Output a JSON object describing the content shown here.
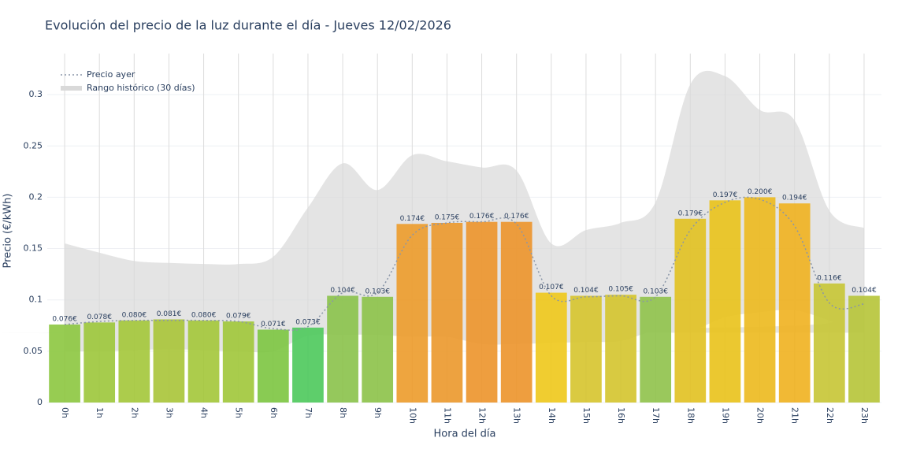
{
  "chart_data": {
    "type": "bar",
    "title": "Evolución del precio de la luz durante el día - Jueves 12/02/2026",
    "x_label": "Hora del día",
    "y_label": "Precio (€/kWh)",
    "categories": [
      "0h",
      "1h",
      "2h",
      "3h",
      "4h",
      "5h",
      "6h",
      "7h",
      "8h",
      "9h",
      "10h",
      "11h",
      "12h",
      "13h",
      "14h",
      "15h",
      "16h",
      "17h",
      "18h",
      "19h",
      "20h",
      "21h",
      "22h",
      "23h"
    ],
    "values": [
      0.076,
      0.078,
      0.08,
      0.081,
      0.08,
      0.079,
      0.071,
      0.073,
      0.104,
      0.103,
      0.174,
      0.175,
      0.176,
      0.176,
      0.107,
      0.104,
      0.105,
      0.103,
      0.179,
      0.197,
      0.2,
      0.194,
      0.116,
      0.104
    ],
    "value_labels": [
      "0.076€",
      "0.078€",
      "0.080€",
      "0.081€",
      "0.080€",
      "0.079€",
      "0.071€",
      "0.073€",
      "0.104€",
      "0.103€",
      "0.174€",
      "0.175€",
      "0.176€",
      "0.176€",
      "0.107€",
      "0.104€",
      "0.105€",
      "0.103€",
      "0.179€",
      "0.197€",
      "0.200€",
      "0.194€",
      "0.116€",
      "0.104€"
    ],
    "colors": [
      "#8cc63f",
      "#9cc63a",
      "#a3c738",
      "#a8c437",
      "#a3c738",
      "#a0c639",
      "#7cc540",
      "#4cc95b",
      "#8ac24a",
      "#8cc248",
      "#ec9b2a",
      "#eb982b",
      "#ec942a",
      "#ec942a",
      "#eec81a",
      "#d6c42c",
      "#d4c42c",
      "#8fc24a",
      "#e1c120",
      "#e9c21a",
      "#ecb91d",
      "#efb11f",
      "#c6c534",
      "#b6c437"
    ],
    "line": {
      "name": "Precio ayer",
      "color": "#8a96a8",
      "values": [
        0.076,
        0.079,
        0.08,
        0.08,
        0.08,
        0.079,
        0.072,
        0.074,
        0.107,
        0.107,
        0.163,
        0.175,
        0.176,
        0.174,
        0.104,
        0.103,
        0.104,
        0.103,
        0.168,
        0.195,
        0.198,
        0.172,
        0.097,
        0.096
      ]
    },
    "range": {
      "name": "Rango histórico (30 días)",
      "color": "#d9d9d9",
      "upper": [
        0.155,
        0.146,
        0.138,
        0.136,
        0.135,
        0.135,
        0.142,
        0.19,
        0.233,
        0.207,
        0.241,
        0.235,
        0.229,
        0.226,
        0.155,
        0.168,
        0.175,
        0.195,
        0.31,
        0.318,
        0.285,
        0.275,
        0.187,
        0.17
      ],
      "lower": [
        0.05,
        0.05,
        0.051,
        0.052,
        0.051,
        0.05,
        0.05,
        0.065,
        0.066,
        0.066,
        0.064,
        0.064,
        0.057,
        0.057,
        0.058,
        0.059,
        0.06,
        0.07,
        0.07,
        0.083,
        0.088,
        0.09,
        0.08,
        0.068
      ]
    },
    "ylim": [
      0,
      0.34
    ],
    "yticks": [
      0,
      0.05,
      0.1,
      0.15,
      0.2,
      0.25,
      0.3
    ],
    "grid": true
  }
}
